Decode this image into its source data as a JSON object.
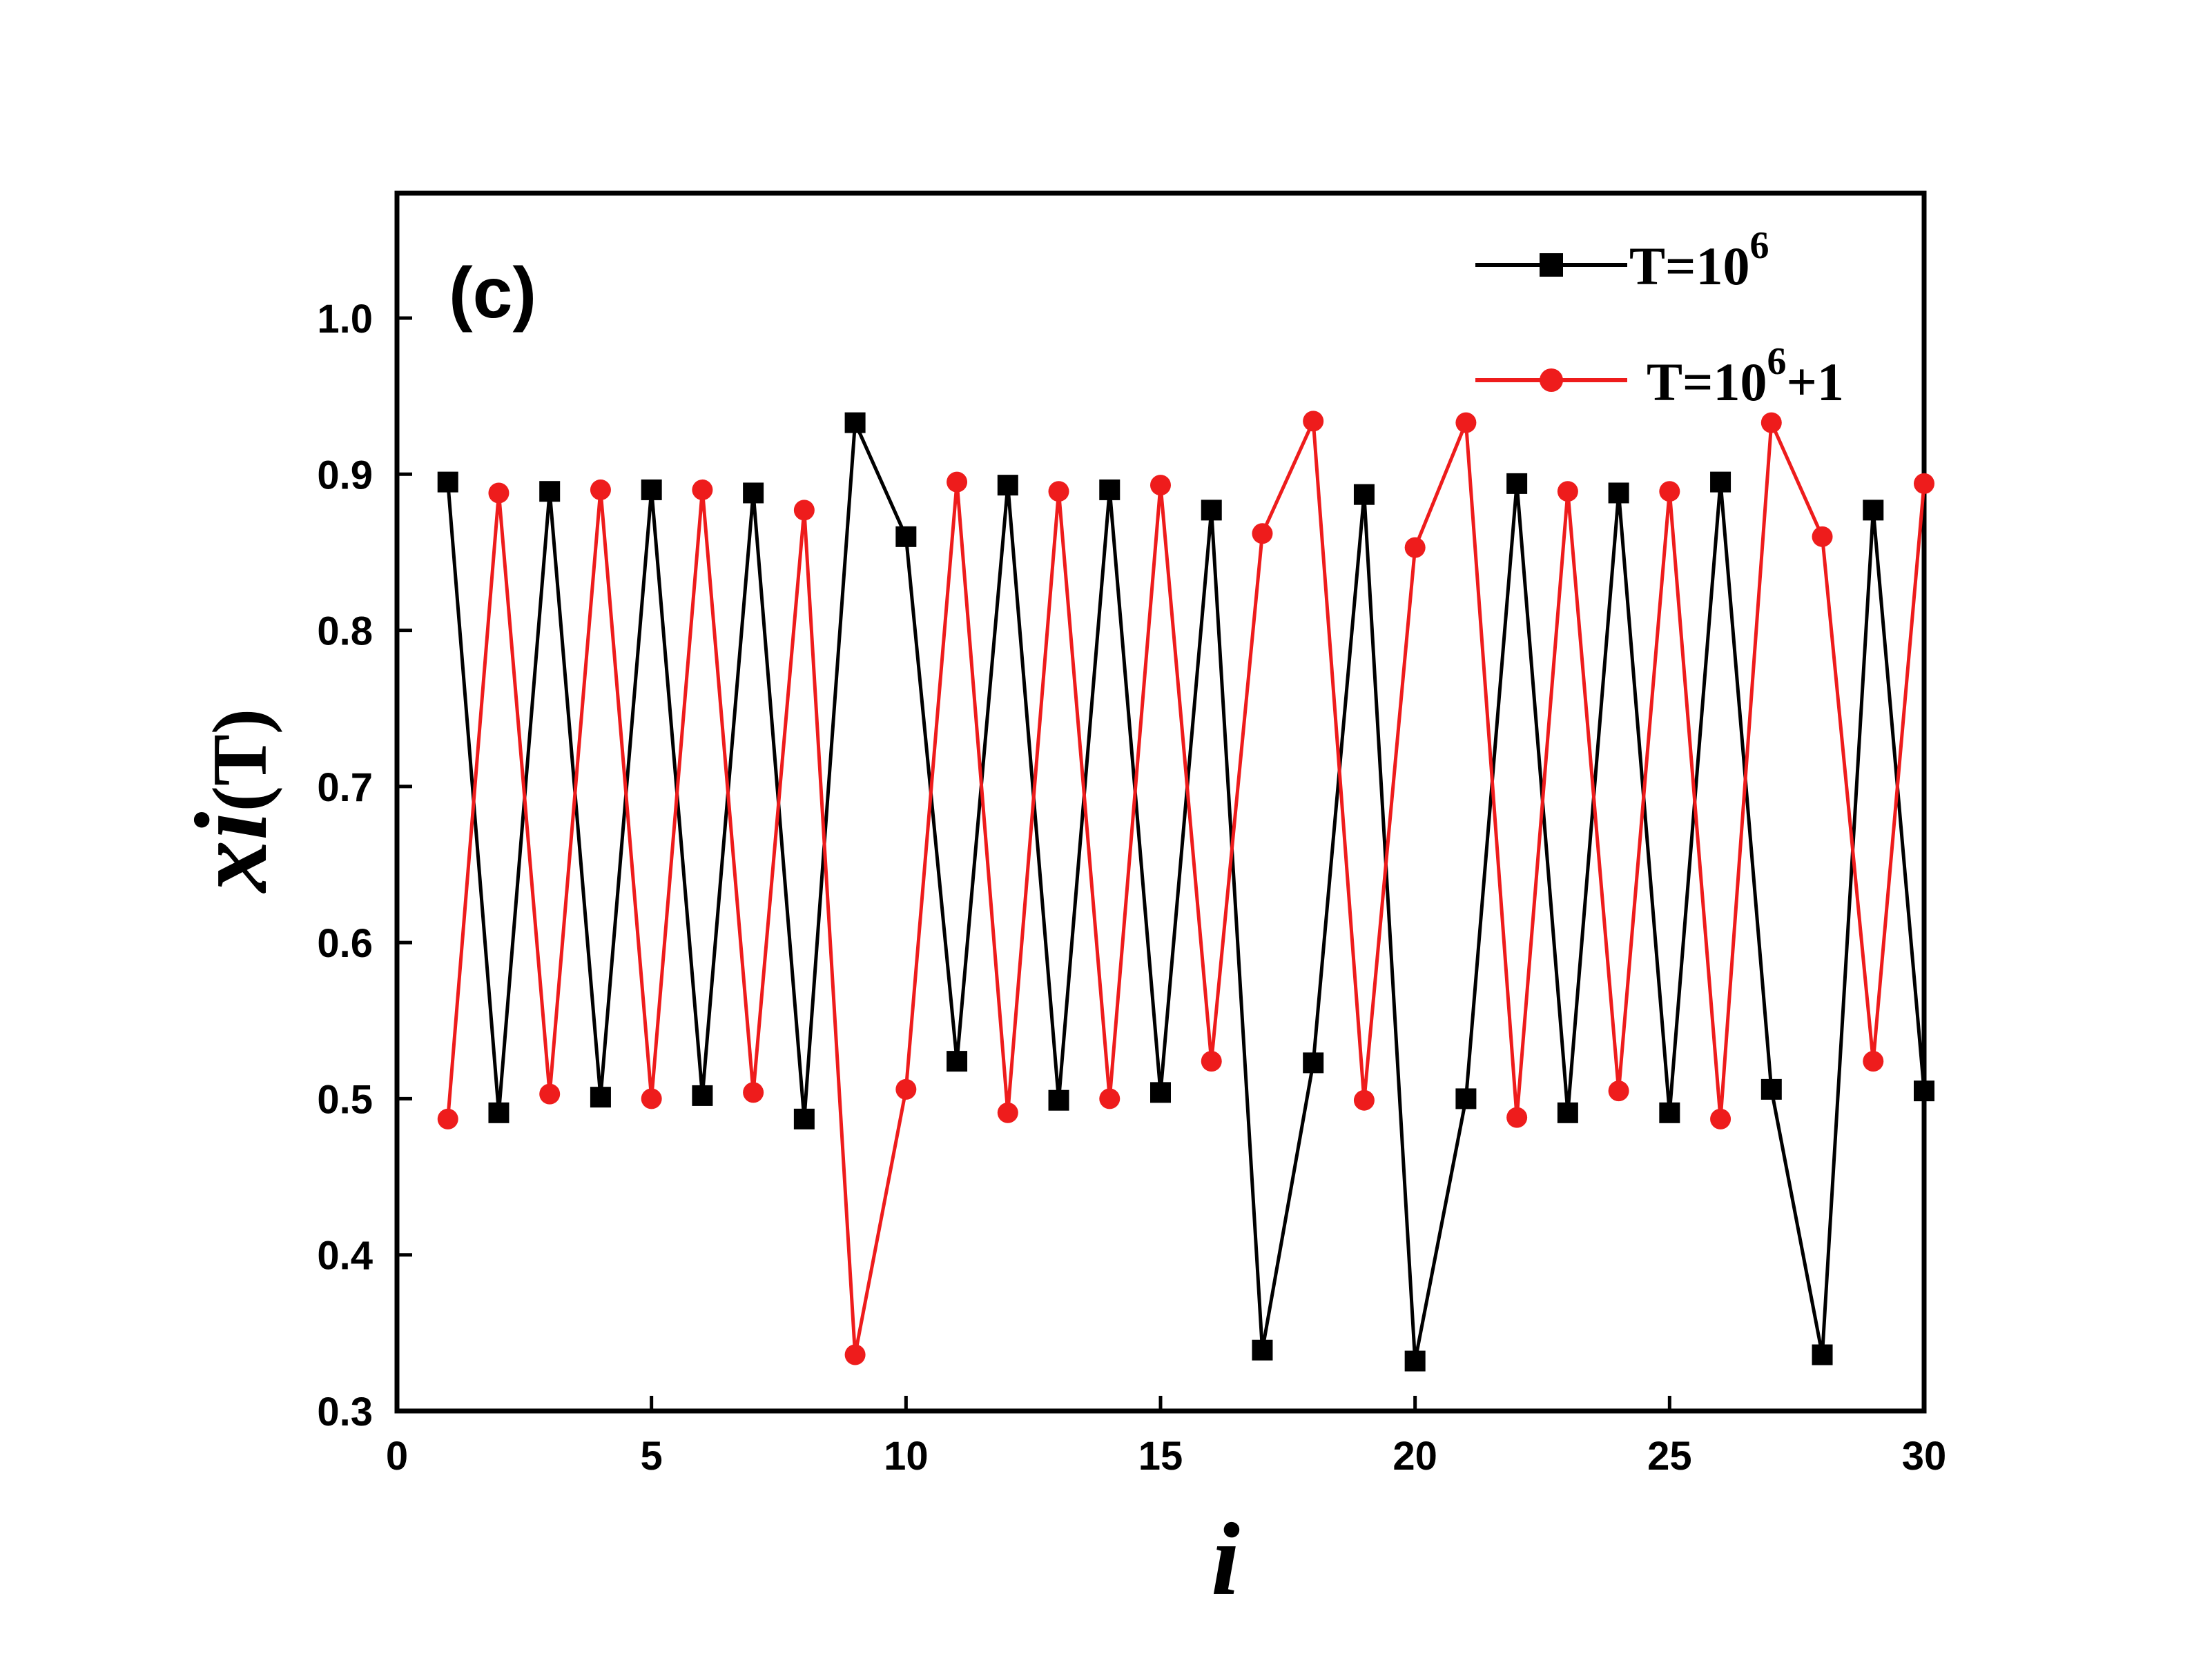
{
  "chart_data": {
    "type": "line",
    "panel_label": "(c)",
    "xlabel": "i",
    "ylabel": {
      "main": "x",
      "sub": "i",
      "suffix": "(T)"
    },
    "xlim": [
      0,
      30
    ],
    "ylim": [
      0.3,
      1.08
    ],
    "xticks": [
      0,
      5,
      10,
      15,
      20,
      25,
      30
    ],
    "xtick_labels": [
      "0",
      "5",
      "10",
      "15",
      "20",
      "25",
      "30"
    ],
    "yticks": [
      0.3,
      0.4,
      0.5,
      0.6,
      0.7,
      0.8,
      0.9,
      1.0
    ],
    "ytick_labels": [
      "0.3",
      "0.4",
      "0.5",
      "0.6",
      "0.7",
      "0.8",
      "0.9",
      "1.0"
    ],
    "grid": false,
    "legend_position": "top-right",
    "series": [
      {
        "legend_base": "T=10",
        "legend_sup": "6",
        "legend_tail": "",
        "color": "#000000",
        "marker": "square",
        "x": [
          1,
          2,
          3,
          4,
          5,
          6,
          7,
          8,
          9,
          10,
          11,
          12,
          13,
          14,
          15,
          16,
          17,
          18,
          19,
          20,
          21,
          22,
          23,
          24,
          25,
          26,
          27,
          28,
          29,
          30
        ],
        "y": [
          0.895,
          0.491,
          0.889,
          0.501,
          0.89,
          0.502,
          0.888,
          0.487,
          0.933,
          0.86,
          0.524,
          0.893,
          0.499,
          0.89,
          0.504,
          0.877,
          0.339,
          0.523,
          0.887,
          0.332,
          0.5,
          0.894,
          0.491,
          0.888,
          0.491,
          0.895,
          0.506,
          0.336,
          0.877,
          0.505
        ]
      },
      {
        "legend_base": "T=10",
        "legend_sup": "6",
        "legend_tail": "+1",
        "color": "#ee1c1c",
        "marker": "circle",
        "x": [
          1,
          2,
          3,
          4,
          5,
          6,
          7,
          8,
          9,
          10,
          11,
          12,
          13,
          14,
          15,
          16,
          17,
          18,
          19,
          20,
          21,
          22,
          23,
          24,
          25,
          26,
          27,
          28,
          29,
          30
        ],
        "y": [
          0.487,
          0.888,
          0.503,
          0.89,
          0.5,
          0.89,
          0.504,
          0.877,
          0.336,
          0.506,
          0.895,
          0.491,
          0.889,
          0.5,
          0.893,
          0.524,
          0.862,
          0.934,
          0.499,
          0.853,
          0.933,
          0.488,
          0.889,
          0.505,
          0.889,
          0.487,
          0.933,
          0.86,
          0.524,
          0.894
        ]
      }
    ]
  }
}
